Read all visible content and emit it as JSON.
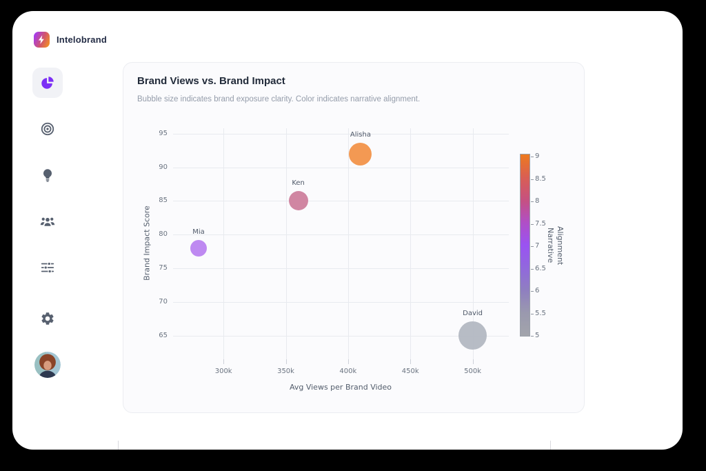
{
  "brand": {
    "name": "Intelobrand",
    "logo_icon": "lightning-bolt-icon"
  },
  "sidebar": {
    "items": [
      {
        "id": "analytics",
        "icon": "pie-chart-icon",
        "active": true,
        "accent_color": "#7c2ff5"
      },
      {
        "id": "targets",
        "icon": "target-icon",
        "active": false
      },
      {
        "id": "insights",
        "icon": "lightbulb-icon",
        "active": false
      },
      {
        "id": "audience",
        "icon": "users-icon",
        "active": false
      },
      {
        "id": "filters",
        "icon": "sliders-icon",
        "active": false
      },
      {
        "id": "settings",
        "icon": "gear-icon",
        "active": false
      },
      {
        "id": "profile",
        "icon": "user-avatar",
        "active": false
      }
    ]
  },
  "chart": {
    "title": "Brand Views vs. Brand Impact",
    "subtitle": "Bubble size indicates brand exposure clarity. Color indicates narrative alignment."
  },
  "chart_data": {
    "type": "scatter",
    "subtype": "bubble",
    "title": "Brand Views vs. Brand Impact",
    "xlabel": "Avg Views per Brand Video",
    "ylabel": "Brand Impact Score",
    "x_ticks": [
      300000,
      350000,
      400000,
      450000,
      500000
    ],
    "x_tick_labels": [
      "300k",
      "350k",
      "400k",
      "450k",
      "500k"
    ],
    "y_ticks": [
      65,
      70,
      75,
      80,
      85,
      90,
      95
    ],
    "x_range": [
      259500,
      529000
    ],
    "y_range": [
      61.5,
      95.8
    ],
    "grid": true,
    "size_meaning": "brand exposure clarity",
    "color_meaning": "narrative alignment",
    "points": [
      {
        "label": "Mia",
        "x": 280000,
        "y": 78,
        "narrative_alignment": 7,
        "bubble_radius_px": 12,
        "color": "#bb83f0"
      },
      {
        "label": "Ken",
        "x": 360000,
        "y": 85,
        "narrative_alignment": 7.5,
        "bubble_radius_px": 14,
        "color": "#cd7f9d"
      },
      {
        "label": "Alisha",
        "x": 410000,
        "y": 92,
        "narrative_alignment": 9,
        "bubble_radius_px": 16.5,
        "color": "#f2944a"
      },
      {
        "label": "David",
        "x": 500000,
        "y": 65,
        "narrative_alignment": 5,
        "bubble_radius_px": 20.5,
        "color": "#b3b8c2"
      }
    ],
    "colorbar": {
      "label": "Narrative Alignment",
      "label_lines": [
        "Narrative",
        "Alignment"
      ],
      "position": "right",
      "min": 5,
      "max": 9,
      "ticks": [
        9,
        8.5,
        8,
        7.5,
        7,
        6.5,
        6,
        5.5,
        5
      ],
      "gradient": [
        "#ee7a1e",
        "#d95f53",
        "#c65180",
        "#b04fc6",
        "#9a53f2",
        "#9168dd",
        "#8f7fc0",
        "#9a99ae",
        "#a2a4ab"
      ]
    }
  }
}
